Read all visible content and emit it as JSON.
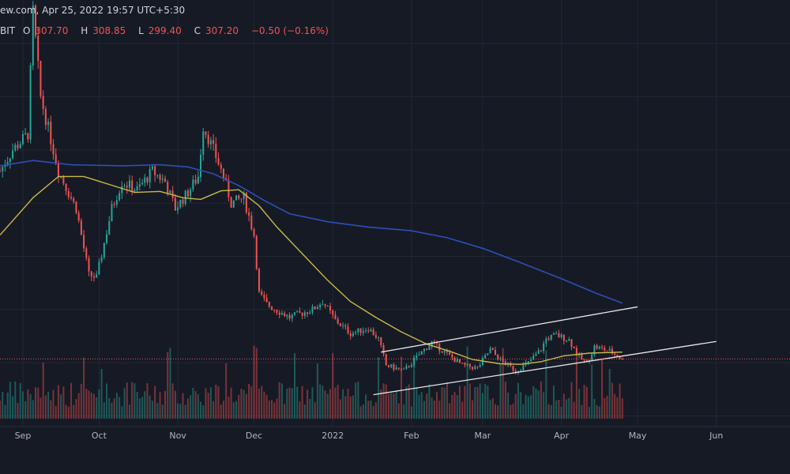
{
  "header": {
    "source_timestamp": "ew.com, Apr 25, 2022 19:57 UTC+5:30"
  },
  "ohlc": {
    "symbol_tail": "BIT",
    "o_label": "O",
    "o_value": "307.70",
    "h_label": "H",
    "h_value": "308.85",
    "l_label": "L",
    "l_value": "299.40",
    "c_label": "C",
    "c_value": "307.20",
    "change": "−0.50 (−0.16%)"
  },
  "colors": {
    "background": "#161a25",
    "up": "#26a69a",
    "down": "#ef5350",
    "ma_fast": "#c9b94a",
    "ma_slow": "#2b50b8",
    "trendline": "#e8e8e8",
    "price_line": "#ef5350"
  },
  "chart_data": {
    "type": "candlestick",
    "x_tick_labels": [
      "Sep",
      "Oct",
      "Nov",
      "Dec",
      "2022",
      "Feb",
      "Mar",
      "Apr",
      "May",
      "Jun"
    ],
    "x_tick_dates": [
      "2021-09-01",
      "2021-10-01",
      "2021-11-01",
      "2021-12-01",
      "2022-01-01",
      "2022-02-01",
      "2022-03-01",
      "2022-04-01",
      "2022-05-01",
      "2022-06-01"
    ],
    "x_range": [
      "2021-08-23",
      "2022-06-30"
    ],
    "y_range": [
      180,
      900
    ],
    "last_close": 307.2,
    "anchors": [
      [
        "2021-08-23",
        660
      ],
      [
        "2021-08-28",
        700
      ],
      [
        "2021-09-03",
        730
      ],
      [
        "2021-09-05",
        960
      ],
      [
        "2021-09-08",
        800
      ],
      [
        "2021-09-15",
        660
      ],
      [
        "2021-09-22",
        590
      ],
      [
        "2021-09-27",
        465
      ],
      [
        "2021-09-30",
        460
      ],
      [
        "2021-10-06",
        590
      ],
      [
        "2021-10-10",
        640
      ],
      [
        "2021-10-16",
        625
      ],
      [
        "2021-10-22",
        660
      ],
      [
        "2021-10-27",
        640
      ],
      [
        "2021-10-31",
        590
      ],
      [
        "2021-11-05",
        620
      ],
      [
        "2021-11-09",
        650
      ],
      [
        "2021-11-11",
        745
      ],
      [
        "2021-11-15",
        700
      ],
      [
        "2021-11-19",
        650
      ],
      [
        "2021-11-22",
        600
      ],
      [
        "2021-11-27",
        610
      ],
      [
        "2021-12-01",
        540
      ],
      [
        "2021-12-03",
        430
      ],
      [
        "2021-12-06",
        410
      ],
      [
        "2021-12-15",
        385
      ],
      [
        "2021-12-24",
        400
      ],
      [
        "2021-12-28",
        415
      ],
      [
        "2022-01-02",
        380
      ],
      [
        "2022-01-08",
        355
      ],
      [
        "2022-01-15",
        365
      ],
      [
        "2022-01-19",
        345
      ],
      [
        "2022-01-22",
        295
      ],
      [
        "2022-01-29",
        285
      ],
      [
        "2022-02-05",
        320
      ],
      [
        "2022-02-09",
        338
      ],
      [
        "2022-02-14",
        320
      ],
      [
        "2022-02-21",
        295
      ],
      [
        "2022-02-27",
        290
      ],
      [
        "2022-03-04",
        325
      ],
      [
        "2022-03-08",
        305
      ],
      [
        "2022-03-14",
        285
      ],
      [
        "2022-03-19",
        300
      ],
      [
        "2022-03-24",
        325
      ],
      [
        "2022-03-26",
        345
      ],
      [
        "2022-03-30",
        352
      ],
      [
        "2022-04-04",
        343
      ],
      [
        "2022-04-08",
        310
      ],
      [
        "2022-04-11",
        300
      ],
      [
        "2022-04-14",
        330
      ],
      [
        "2022-04-20",
        322
      ],
      [
        "2022-04-25",
        307.2
      ]
    ],
    "ma_fast_anchors": [
      [
        "2021-08-23",
        540
      ],
      [
        "2021-09-05",
        610
      ],
      [
        "2021-09-15",
        650
      ],
      [
        "2021-09-25",
        650
      ],
      [
        "2021-10-05",
        635
      ],
      [
        "2021-10-15",
        620
      ],
      [
        "2021-10-25",
        622
      ],
      [
        "2021-11-03",
        610
      ],
      [
        "2021-11-10",
        607
      ],
      [
        "2021-11-18",
        623
      ],
      [
        "2021-11-25",
        625
      ],
      [
        "2021-12-03",
        595
      ],
      [
        "2021-12-10",
        555
      ],
      [
        "2021-12-20",
        505
      ],
      [
        "2021-12-30",
        455
      ],
      [
        "2022-01-08",
        415
      ],
      [
        "2022-01-18",
        385
      ],
      [
        "2022-01-28",
        358
      ],
      [
        "2022-02-07",
        335
      ],
      [
        "2022-02-17",
        320
      ],
      [
        "2022-02-25",
        306
      ],
      [
        "2022-03-08",
        298
      ],
      [
        "2022-03-16",
        297
      ],
      [
        "2022-03-24",
        302
      ],
      [
        "2022-04-02",
        313
      ],
      [
        "2022-04-12",
        318
      ],
      [
        "2022-04-25",
        320
      ]
    ],
    "ma_slow_anchors": [
      [
        "2021-08-23",
        670
      ],
      [
        "2021-09-05",
        680
      ],
      [
        "2021-09-20",
        672
      ],
      [
        "2021-10-10",
        670
      ],
      [
        "2021-10-25",
        672
      ],
      [
        "2021-11-05",
        668
      ],
      [
        "2021-11-15",
        655
      ],
      [
        "2021-11-25",
        633
      ],
      [
        "2021-12-05",
        605
      ],
      [
        "2021-12-15",
        580
      ],
      [
        "2021-12-30",
        565
      ],
      [
        "2022-01-15",
        555
      ],
      [
        "2022-02-01",
        548
      ],
      [
        "2022-02-15",
        535
      ],
      [
        "2022-03-01",
        515
      ],
      [
        "2022-03-15",
        490
      ],
      [
        "2022-04-01",
        458
      ],
      [
        "2022-04-15",
        430
      ],
      [
        "2022-04-25",
        412
      ]
    ],
    "trendlines": [
      {
        "start": [
          "2022-01-20",
          320
        ],
        "end": [
          "2022-05-01",
          405
        ]
      },
      {
        "start": [
          "2022-01-17",
          240
        ],
        "end": [
          "2022-06-01",
          340
        ]
      }
    ]
  }
}
